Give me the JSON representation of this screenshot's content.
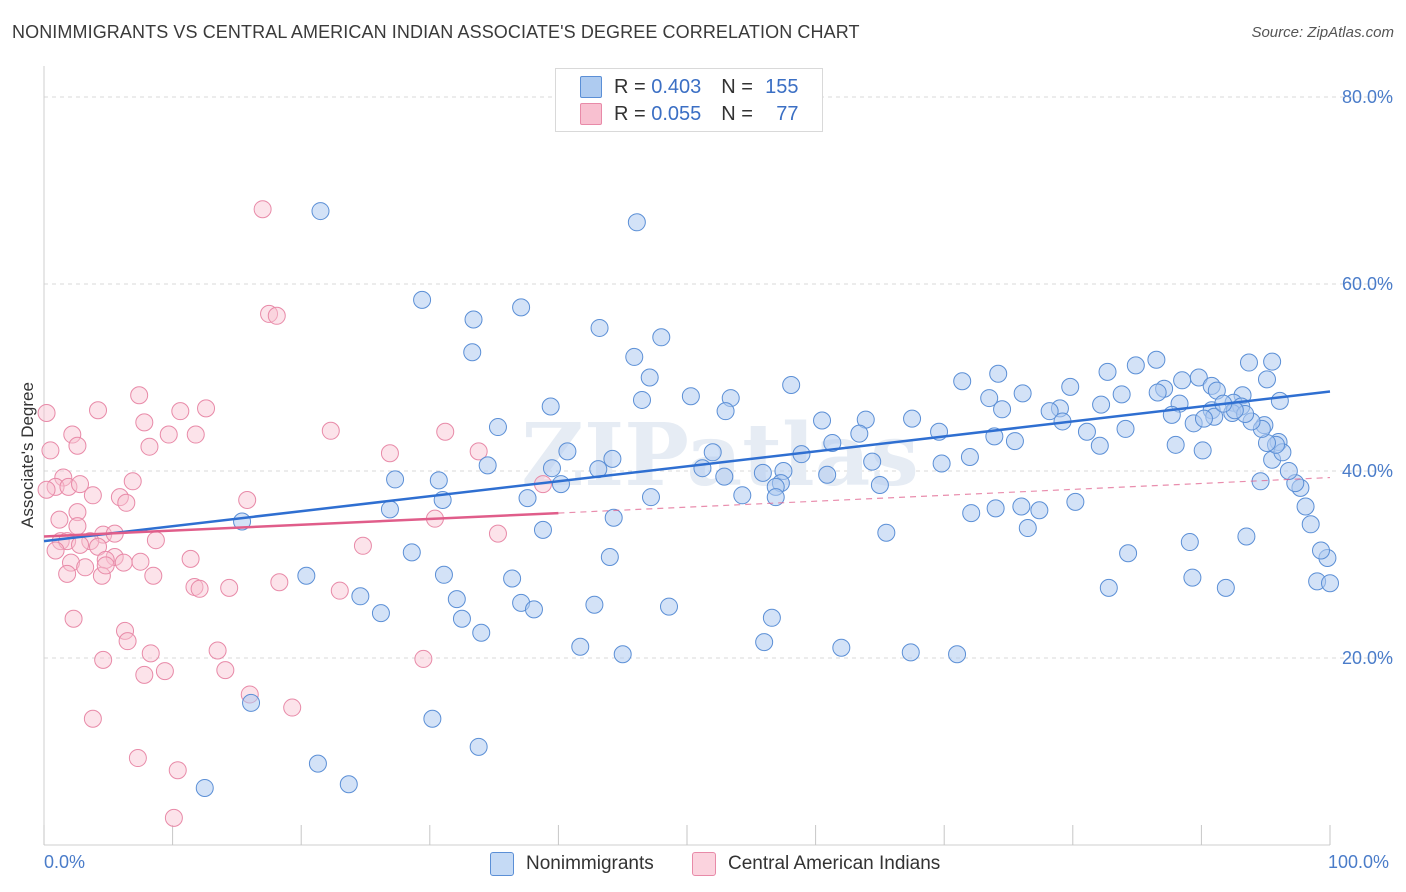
{
  "title": "NONIMMIGRANTS VS CENTRAL AMERICAN INDIAN ASSOCIATE'S DEGREE CORRELATION CHART",
  "source": "Source: ZipAtlas.com",
  "watermark": "ZIPatlas",
  "legend": {
    "r_label": "R =",
    "n_label": "N =",
    "rows": [
      {
        "r": "0.403",
        "n": "155"
      },
      {
        "r": "0.055",
        "n": "77"
      }
    ]
  },
  "colors": {
    "blue_fill": "#aecbf0",
    "blue_stroke": "#5b8fd6",
    "blue_line": "#2f6fd1",
    "pink_fill": "#f8c0d0",
    "pink_stroke": "#e88aa8",
    "pink_line": "#e05d8a",
    "grid": "#d8d8d8",
    "tick_text": "#4a7cc9"
  },
  "chart_data": {
    "type": "scatter",
    "title": "NONIMMIGRANTS VS CENTRAL AMERICAN INDIAN ASSOCIATE'S DEGREE CORRELATION CHART",
    "xlabel": "",
    "ylabel": "Associate's Degree",
    "xlim": [
      0,
      100
    ],
    "ylim": [
      0,
      80
    ],
    "x_tick_labels": [
      "0.0%",
      "100.0%"
    ],
    "y_tick_labels": [
      "20.0%",
      "40.0%",
      "60.0%",
      "80.0%"
    ],
    "y_tick_values": [
      20,
      40,
      60,
      80
    ],
    "grid": true,
    "legend_position": "top-center",
    "series": [
      {
        "name": "Nonimmigrants",
        "r": 0.403,
        "n": 155,
        "trend": {
          "x": [
            0,
            100
          ],
          "y": [
            32.5,
            48.5
          ]
        },
        "points": [
          [
            21.5,
            67.8
          ],
          [
            46.1,
            66.6
          ],
          [
            29.4,
            58.3
          ],
          [
            37.1,
            57.5
          ],
          [
            33.4,
            56.2
          ],
          [
            43.2,
            55.3
          ],
          [
            48.0,
            54.3
          ],
          [
            33.3,
            52.7
          ],
          [
            45.9,
            52.2
          ],
          [
            47.1,
            50.0
          ],
          [
            86.5,
            51.9
          ],
          [
            95.5,
            51.7
          ],
          [
            93.7,
            51.6
          ],
          [
            84.9,
            51.3
          ],
          [
            82.7,
            50.6
          ],
          [
            74.2,
            50.4
          ],
          [
            89.8,
            50.0
          ],
          [
            95.1,
            49.8
          ],
          [
            88.5,
            49.7
          ],
          [
            71.4,
            49.6
          ],
          [
            90.8,
            49.1
          ],
          [
            58.1,
            49.2
          ],
          [
            79.8,
            49.0
          ],
          [
            87.1,
            48.8
          ],
          [
            91.2,
            48.6
          ],
          [
            76.1,
            48.3
          ],
          [
            86.6,
            48.4
          ],
          [
            83.8,
            48.2
          ],
          [
            93.2,
            48.1
          ],
          [
            50.3,
            48.0
          ],
          [
            53.4,
            47.8
          ],
          [
            73.5,
            47.8
          ],
          [
            46.5,
            47.6
          ],
          [
            88.3,
            47.2
          ],
          [
            82.2,
            47.1
          ],
          [
            92.5,
            47.3
          ],
          [
            96.1,
            47.5
          ],
          [
            93.1,
            46.9
          ],
          [
            79.0,
            46.7
          ],
          [
            90.8,
            46.5
          ],
          [
            78.2,
            46.4
          ],
          [
            74.5,
            46.6
          ],
          [
            39.4,
            46.9
          ],
          [
            53.0,
            46.4
          ],
          [
            92.4,
            46.2
          ],
          [
            91.0,
            45.8
          ],
          [
            67.5,
            45.6
          ],
          [
            60.5,
            45.4
          ],
          [
            63.9,
            45.5
          ],
          [
            89.4,
            45.1
          ],
          [
            94.9,
            44.9
          ],
          [
            35.3,
            44.7
          ],
          [
            69.6,
            44.2
          ],
          [
            63.4,
            44.0
          ],
          [
            73.9,
            43.7
          ],
          [
            75.5,
            43.2
          ],
          [
            96.0,
            43.1
          ],
          [
            61.3,
            43.0
          ],
          [
            88.0,
            42.8
          ],
          [
            82.1,
            42.7
          ],
          [
            90.1,
            42.2
          ],
          [
            40.7,
            42.1
          ],
          [
            52.0,
            42.0
          ],
          [
            58.9,
            41.8
          ],
          [
            72.0,
            41.5
          ],
          [
            44.2,
            41.3
          ],
          [
            95.5,
            41.2
          ],
          [
            64.4,
            41.0
          ],
          [
            69.8,
            40.8
          ],
          [
            34.5,
            40.6
          ],
          [
            51.2,
            40.3
          ],
          [
            39.5,
            40.3
          ],
          [
            43.1,
            40.2
          ],
          [
            57.5,
            40.0
          ],
          [
            55.9,
            39.8
          ],
          [
            60.9,
            39.6
          ],
          [
            52.9,
            39.4
          ],
          [
            94.6,
            38.9
          ],
          [
            57.3,
            38.7
          ],
          [
            65.0,
            38.5
          ],
          [
            27.3,
            39.1
          ],
          [
            30.7,
            39.0
          ],
          [
            40.2,
            38.6
          ],
          [
            56.9,
            38.3
          ],
          [
            54.3,
            37.4
          ],
          [
            56.9,
            37.2
          ],
          [
            47.2,
            37.2
          ],
          [
            37.6,
            37.1
          ],
          [
            31.0,
            36.9
          ],
          [
            80.2,
            36.7
          ],
          [
            76.0,
            36.2
          ],
          [
            74.0,
            36.0
          ],
          [
            77.4,
            35.8
          ],
          [
            26.9,
            35.9
          ],
          [
            72.1,
            35.5
          ],
          [
            44.3,
            35.0
          ],
          [
            15.4,
            34.6
          ],
          [
            76.5,
            33.9
          ],
          [
            38.8,
            33.7
          ],
          [
            65.5,
            33.4
          ],
          [
            93.5,
            33.0
          ],
          [
            89.1,
            32.4
          ],
          [
            84.3,
            31.2
          ],
          [
            28.6,
            31.3
          ],
          [
            44.0,
            30.8
          ],
          [
            20.4,
            28.8
          ],
          [
            31.1,
            28.9
          ],
          [
            36.4,
            28.5
          ],
          [
            24.6,
            26.6
          ],
          [
            32.1,
            26.3
          ],
          [
            37.1,
            25.9
          ],
          [
            42.8,
            25.7
          ],
          [
            38.1,
            25.2
          ],
          [
            26.2,
            24.8
          ],
          [
            32.5,
            24.2
          ],
          [
            48.6,
            25.5
          ],
          [
            89.3,
            28.6
          ],
          [
            91.9,
            27.5
          ],
          [
            99.0,
            28.2
          ],
          [
            82.8,
            27.5
          ],
          [
            16.1,
            15.2
          ],
          [
            30.2,
            13.5
          ],
          [
            21.3,
            8.7
          ],
          [
            33.8,
            10.5
          ],
          [
            12.5,
            6.1
          ],
          [
            23.7,
            6.5
          ],
          [
            56.6,
            24.3
          ],
          [
            34.0,
            22.7
          ],
          [
            41.7,
            21.2
          ],
          [
            45.0,
            20.4
          ],
          [
            56.0,
            21.7
          ],
          [
            67.4,
            20.6
          ],
          [
            71.0,
            20.4
          ],
          [
            62.0,
            21.1
          ],
          [
            100.0,
            28.0
          ],
          [
            99.8,
            30.7
          ],
          [
            99.3,
            31.5
          ],
          [
            98.5,
            34.3
          ],
          [
            98.1,
            36.2
          ],
          [
            97.7,
            38.2
          ],
          [
            97.3,
            38.7
          ],
          [
            96.8,
            40.0
          ],
          [
            96.3,
            42.0
          ],
          [
            95.8,
            42.8
          ],
          [
            95.1,
            43.0
          ],
          [
            94.7,
            44.5
          ],
          [
            93.9,
            45.3
          ],
          [
            93.4,
            46.1
          ],
          [
            92.6,
            46.5
          ],
          [
            91.7,
            47.2
          ],
          [
            90.2,
            45.6
          ],
          [
            87.7,
            46.0
          ],
          [
            84.1,
            44.5
          ],
          [
            81.1,
            44.2
          ],
          [
            79.2,
            45.3
          ]
        ]
      },
      {
        "name": "Central American Indians",
        "r": 0.055,
        "n": 77,
        "trend": {
          "x": [
            0,
            40
          ],
          "y": [
            33.0,
            35.5
          ]
        },
        "trend_dashed": {
          "x": [
            40,
            100
          ],
          "y": [
            35.5,
            39.3
          ]
        },
        "points": [
          [
            17.0,
            68.0
          ],
          [
            17.5,
            56.8
          ],
          [
            18.1,
            56.6
          ],
          [
            7.4,
            48.1
          ],
          [
            12.6,
            46.7
          ],
          [
            4.2,
            46.5
          ],
          [
            10.6,
            46.4
          ],
          [
            0.2,
            46.2
          ],
          [
            7.8,
            45.2
          ],
          [
            2.2,
            43.9
          ],
          [
            9.7,
            43.9
          ],
          [
            8.2,
            42.6
          ],
          [
            11.8,
            43.9
          ],
          [
            22.3,
            44.3
          ],
          [
            0.5,
            42.2
          ],
          [
            2.6,
            42.7
          ],
          [
            33.8,
            42.1
          ],
          [
            31.2,
            44.2
          ],
          [
            26.9,
            41.9
          ],
          [
            1.5,
            39.3
          ],
          [
            0.9,
            38.3
          ],
          [
            1.9,
            38.3
          ],
          [
            6.9,
            38.9
          ],
          [
            2.8,
            38.6
          ],
          [
            0.2,
            38.0
          ],
          [
            38.8,
            38.6
          ],
          [
            3.8,
            37.4
          ],
          [
            5.9,
            37.2
          ],
          [
            15.8,
            36.9
          ],
          [
            6.4,
            36.6
          ],
          [
            2.6,
            35.6
          ],
          [
            1.2,
            34.8
          ],
          [
            30.4,
            34.9
          ],
          [
            2.6,
            34.1
          ],
          [
            4.6,
            33.2
          ],
          [
            5.5,
            33.3
          ],
          [
            35.3,
            33.3
          ],
          [
            1.3,
            32.5
          ],
          [
            1.8,
            32.5
          ],
          [
            3.6,
            32.5
          ],
          [
            8.7,
            32.6
          ],
          [
            2.8,
            32.1
          ],
          [
            4.2,
            31.9
          ],
          [
            24.8,
            32.0
          ],
          [
            0.9,
            31.5
          ],
          [
            5.5,
            30.8
          ],
          [
            4.8,
            30.5
          ],
          [
            2.1,
            30.2
          ],
          [
            11.4,
            30.6
          ],
          [
            3.2,
            29.7
          ],
          [
            1.8,
            29.0
          ],
          [
            4.5,
            28.8
          ],
          [
            8.5,
            28.8
          ],
          [
            18.3,
            28.1
          ],
          [
            11.7,
            27.6
          ],
          [
            23.0,
            27.2
          ],
          [
            2.3,
            24.2
          ],
          [
            6.3,
            22.9
          ],
          [
            6.5,
            21.8
          ],
          [
            13.5,
            20.8
          ],
          [
            8.3,
            20.5
          ],
          [
            4.6,
            19.8
          ],
          [
            29.5,
            19.9
          ],
          [
            9.4,
            18.6
          ],
          [
            14.1,
            18.7
          ],
          [
            7.8,
            18.2
          ],
          [
            16.0,
            16.1
          ],
          [
            19.3,
            14.7
          ],
          [
            3.8,
            13.5
          ],
          [
            7.3,
            9.3
          ],
          [
            10.4,
            8.0
          ],
          [
            10.1,
            2.9
          ],
          [
            4.8,
            29.9
          ],
          [
            6.2,
            30.2
          ],
          [
            7.5,
            30.3
          ],
          [
            14.4,
            27.5
          ],
          [
            12.1,
            27.4
          ]
        ]
      }
    ]
  },
  "bottom_legend": [
    "Nonimmigrants",
    "Central American Indians"
  ]
}
